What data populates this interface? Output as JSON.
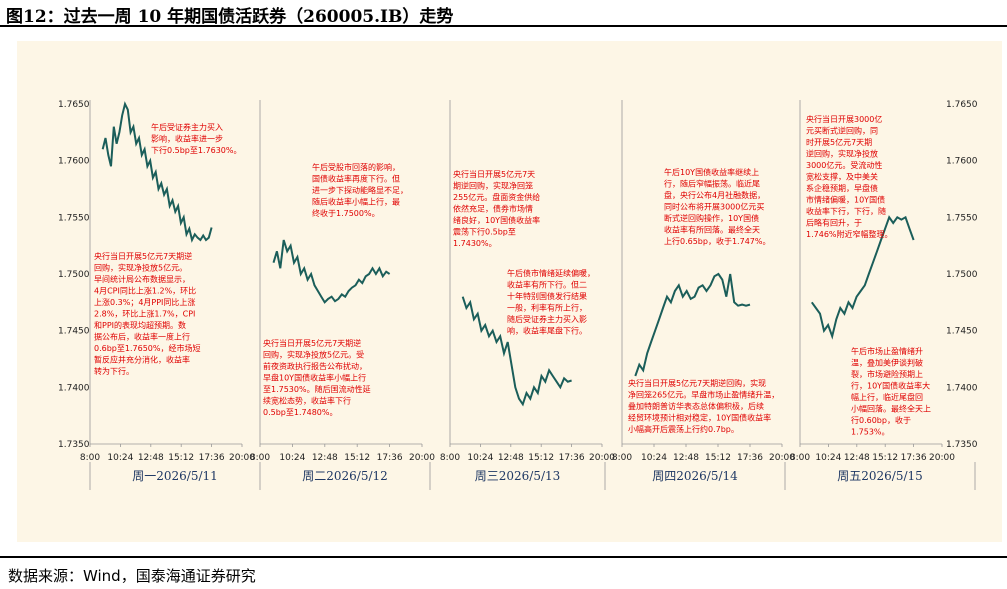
{
  "title": "图12：过去一周 10 年期国债活跃券（260005.IB）走势",
  "source": "数据来源：Wind，国泰海通证券研究",
  "colors": {
    "line": "#1b5e5a",
    "annotation": "#e00000",
    "day_label": "#1f3864",
    "panel_bg": "#fdf6e6"
  },
  "chart_data": {
    "type": "line",
    "ylim": [
      1.735,
      1.765
    ],
    "y_ticks": [
      "1.7650",
      "1.7600",
      "1.7550",
      "1.7500",
      "1.7450",
      "1.7400",
      "1.7350"
    ],
    "x_ticks": [
      "8:00",
      "10:24",
      "12:48",
      "15:12",
      "17:36",
      "20:00"
    ],
    "panels": [
      {
        "day": "周一2026/5/11",
        "values": [
          1.761,
          1.762,
          1.7605,
          1.7595,
          1.763,
          1.7615,
          1.7625,
          1.764,
          1.765,
          1.7645,
          1.7625,
          1.763,
          1.7615,
          1.762,
          1.7605,
          1.761,
          1.7595,
          1.76,
          1.7585,
          1.759,
          1.7575,
          1.758,
          1.757,
          1.7575,
          1.756,
          1.7565,
          1.7555,
          1.756,
          1.7545,
          1.755,
          1.7535,
          1.754,
          1.753,
          1.7535,
          1.7532,
          1.753,
          1.7534,
          1.753,
          1.7532,
          1.7541
        ],
        "annotations": [
          [
            "午后受证券主力买入",
            "影响，收益率进一步",
            "下行0.5bp至1.7630%。"
          ],
          [
            "央行当日开展5亿元7天期逆",
            "回购，实现净投放5亿元。",
            "早间统计局公布数据显示，",
            "4月CPI同比上涨1.2%，环比",
            "上涨0.3%；4月PPI同比上涨",
            "2.8%，环比上涨1.7%，CPI",
            "和PPI的表现均超预期。数",
            "据公布后，收益率一度上行",
            "0.6bp至1.7650%，经市场短",
            "暂反应并充分消化，收益率",
            "转为下行。"
          ]
        ]
      },
      {
        "day": "周二2026/5/12",
        "values": [
          1.751,
          1.752,
          1.7505,
          1.753,
          1.752,
          1.7525,
          1.751,
          1.7515,
          1.75,
          1.7505,
          1.7495,
          1.75,
          1.749,
          1.7485,
          1.748,
          1.7475,
          1.7478,
          1.748,
          1.7476,
          1.7478,
          1.7482,
          1.748,
          1.7485,
          1.7488,
          1.749,
          1.7495,
          1.7492,
          1.7498,
          1.75,
          1.7505,
          1.75,
          1.7505,
          1.7498,
          1.7502,
          1.75
        ],
        "annotations": [
          [
            "午后受股市回落的影响，",
            "国债收益率再度下行。但",
            "进一步下探动能略显不足，",
            "随后收益率小幅上行，最",
            "终收于1.7500%。"
          ],
          [
            "央行当日开展5亿元7天期逆",
            "回购，实现净投放5亿元。受",
            "前夜资政执行报告公布扰动，",
            "早盘10Y国债收益率小幅上行",
            "至1.7530%。随后国流动性延",
            "续宽松态势，收益率下行",
            "0.5bp至1.7480%。"
          ]
        ]
      },
      {
        "day": "周三2026/5/13",
        "values": [
          1.748,
          1.747,
          1.7475,
          1.746,
          1.7465,
          1.745,
          1.7455,
          1.7445,
          1.745,
          1.744,
          1.7445,
          1.743,
          1.744,
          1.742,
          1.74,
          1.739,
          1.7385,
          1.7395,
          1.739,
          1.74,
          1.7395,
          1.741,
          1.7405,
          1.7415,
          1.741,
          1.7405,
          1.74,
          1.7408,
          1.7405,
          1.7406
        ],
        "annotations": [
          [
            "央行当日开展5亿元7天",
            "期逆回购，实现净回笼",
            "255亿元。盘面资金供给",
            "依然充足，债券市场情",
            "绪良好，10Y国债收益率",
            "震荡下行0.5bp至",
            "1.7430%。"
          ],
          [
            "午后债市情绪延续偏暖，",
            "收益率有所下行。但二",
            "十年特别国债发行结果",
            "一般，利率有所上行，",
            "随后受证券主力买入影",
            "响，收益率尾盘下行。"
          ]
        ]
      },
      {
        "day": "周四2026/5/14",
        "values": [
          1.741,
          1.742,
          1.7415,
          1.743,
          1.744,
          1.745,
          1.746,
          1.747,
          1.748,
          1.7475,
          1.7485,
          1.749,
          1.748,
          1.7485,
          1.7478,
          1.748,
          1.7488,
          1.749,
          1.7485,
          1.749,
          1.7498,
          1.75,
          1.7495,
          1.748,
          1.75,
          1.7475,
          1.7472,
          1.7473,
          1.7472,
          1.7473
        ],
        "annotations": [
          [
            "午后10Y国债收益率继续上",
            "行，随后窄幅振荡。临近尾",
            "盘，央行公布4月社融数据，",
            "同时公布将开展3000亿元买",
            "断式逆回购操作，10Y国债",
            "收益率有所回落。最终全天",
            "上行0.65bp，收于1.747%。"
          ],
          [
            "央行当日开展5亿元7天期逆回购，实现",
            "净回笼265亿元。早盘市场止盈情绪升温，",
            "叠加特朗普访华表态总体偏积极，后续",
            "经贸环境预计相对稳定，10Y国债收益率",
            "小幅高开后震荡上行约0.7bp。"
          ]
        ]
      },
      {
        "day": "周五2026/5/15",
        "values": [
          1.7475,
          1.747,
          1.7465,
          1.745,
          1.7455,
          1.7445,
          1.746,
          1.747,
          1.7465,
          1.7475,
          1.747,
          1.748,
          1.7485,
          1.749,
          1.75,
          1.751,
          1.752,
          1.753,
          1.754,
          1.755,
          1.7545,
          1.755,
          1.7548,
          1.755,
          1.754,
          1.753
        ],
        "annotations": [
          [
            "央行当日开展3000亿",
            "元买断式逆回购，同",
            "时开展5亿元7天期",
            "逆回购，实现净投放",
            "3000亿元。受流动性",
            "宽松支撑，及中美关",
            "系企稳预期，早盘债",
            "市情绪偏暖，10Y国债",
            "收益率下行，下行，随",
            "后略有回升，于",
            "1.746%附近窄幅整理。"
          ],
          [
            "午后市场止盈情绪升",
            "温，叠加美伊谈判破",
            "裂，市场避险预期上",
            "行，10Y国债收益率大",
            "幅上行，临近尾盘回",
            "小幅回落。最终全天上",
            "行0.60bp，收于",
            "1.753%。"
          ]
        ]
      }
    ]
  }
}
